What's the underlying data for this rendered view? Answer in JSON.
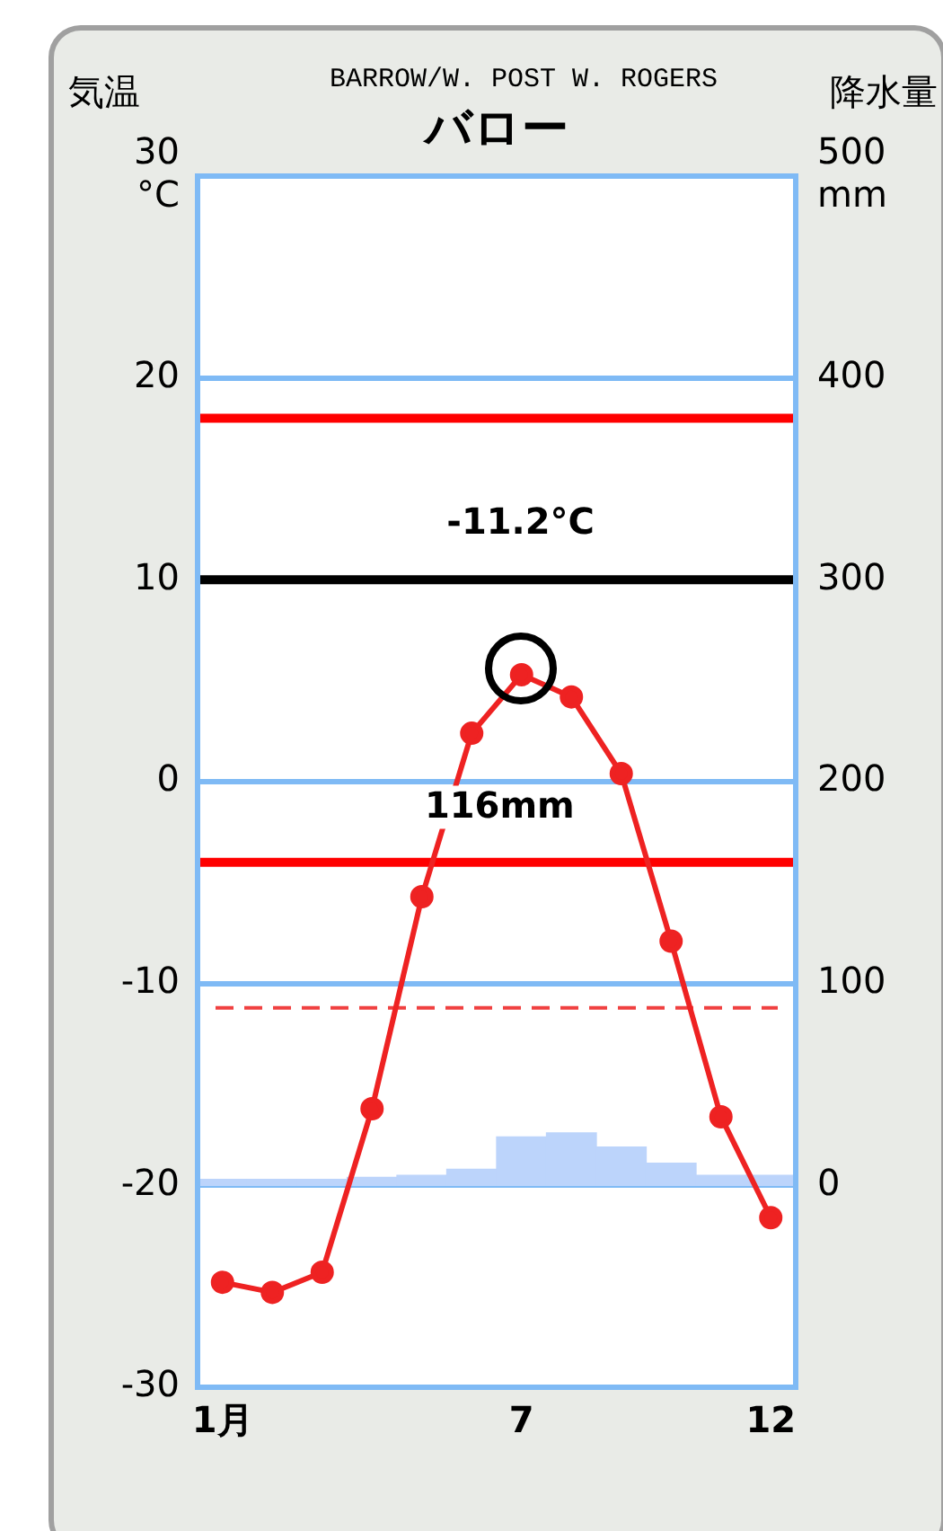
{
  "chart_data": {
    "type": "line",
    "title": "バロー",
    "subtitle": "BARROW/W. POST W. ROGERS",
    "ylabel": "気温",
    "y2label": "降水量",
    "categories": [
      "1月",
      null,
      null,
      null,
      null,
      null,
      "7",
      null,
      null,
      null,
      null,
      "12"
    ],
    "series": [
      {
        "type": "bar",
        "axis": "y2",
        "color": "#bcd4fb",
        "values": [
          3,
          3,
          3,
          4,
          5,
          8,
          24,
          26,
          19,
          11,
          5,
          5
        ]
      },
      {
        "axis": "y",
        "color": "#ee2222",
        "values": [
          -24.8,
          -25.3,
          -24.3,
          -16.2,
          -5.7,
          2.4,
          5.3,
          4.2,
          0.4,
          -7.9,
          -16.6,
          -21.6
        ]
      }
    ],
    "ylim": [
      -30,
      30
    ],
    "yticks": [
      {
        "value": 30,
        "label": "30\n°C"
      },
      20,
      10,
      0,
      -10,
      -20,
      -30
    ],
    "y2lim": [
      -100,
      500
    ],
    "y2ticks": [
      {
        "value": 500,
        "label": "500\nmm"
      },
      400,
      300,
      200,
      100,
      0
    ],
    "ref_lines": [
      {
        "axis": "y",
        "value": -11.2,
        "color": "#f04040",
        "line_style": "dashed"
      },
      {
        "axis": "y",
        "value": 18,
        "color": "#ff0000",
        "line_style": "solid"
      },
      {
        "axis": "y",
        "value": 10,
        "color": "#000000",
        "line_style": "solid"
      },
      {
        "axis": "y",
        "value": -4,
        "color": "#ff0000",
        "line_style": "solid"
      }
    ],
    "annotations": [
      "-11.2°C",
      "116mm"
    ],
    "grid": "y",
    "legend": false,
    "marker": "circle",
    "line_style": "solid"
  }
}
